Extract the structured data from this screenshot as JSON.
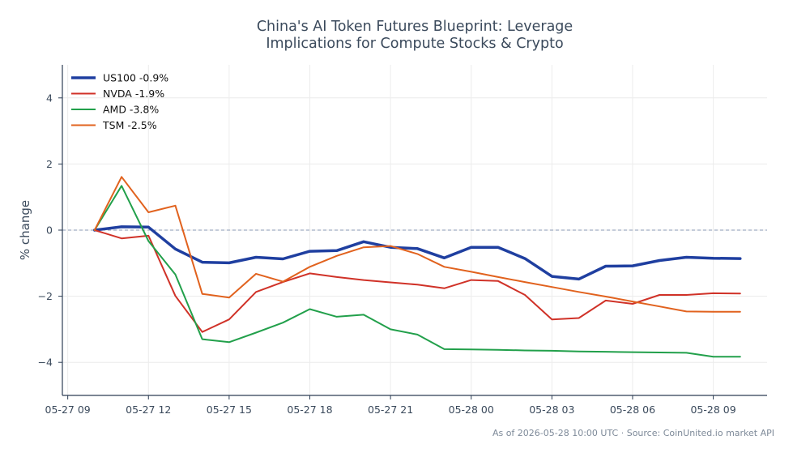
{
  "chart_data": {
    "type": "line",
    "title_lines": [
      "China's AI Token Futures Blueprint: Leverage",
      "Implications for Compute Stocks & Crypto"
    ],
    "ylabel": "% change",
    "xlabel": "",
    "footer": "As of 2026-05-28 10:00 UTC · Source: CoinUnited.io market API",
    "ylim": [
      -5,
      5
    ],
    "xlim": [
      -0.2,
      26
    ],
    "grid": true,
    "zero_line": true,
    "legend_position": "top-left",
    "yticks": [
      {
        "v": 4,
        "label": "4"
      },
      {
        "v": 2,
        "label": "2"
      },
      {
        "v": 0,
        "label": "0"
      },
      {
        "v": -2,
        "label": "−2"
      },
      {
        "v": -4,
        "label": "−4"
      }
    ],
    "xticks": [
      {
        "t": 0,
        "label": "05-27 09"
      },
      {
        "t": 3,
        "label": "05-27 12"
      },
      {
        "t": 6,
        "label": "05-27 15"
      },
      {
        "t": 9,
        "label": "05-27 18"
      },
      {
        "t": 12,
        "label": "05-27 21"
      },
      {
        "t": 15,
        "label": "05-28 00"
      },
      {
        "t": 18,
        "label": "05-28 03"
      },
      {
        "t": 21,
        "label": "05-28 06"
      },
      {
        "t": 24,
        "label": "05-28 09"
      }
    ],
    "series": [
      {
        "name": "US100 -0.9%",
        "color": "#1f3fa0",
        "width": 3.5,
        "x": [
          1,
          2,
          3,
          4,
          5,
          6,
          7,
          8,
          9,
          10,
          11,
          12,
          13,
          14,
          15,
          16,
          17,
          18,
          19,
          20,
          21,
          22,
          23,
          24,
          25
        ],
        "y": [
          0,
          0.1,
          0.09,
          -0.57,
          -0.97,
          -0.99,
          -0.82,
          -0.87,
          -0.64,
          -0.62,
          -0.35,
          -0.52,
          -0.56,
          -0.84,
          -0.52,
          -0.52,
          -0.86,
          -1.4,
          -1.48,
          -1.09,
          -1.08,
          -0.92,
          -0.82,
          -0.85,
          -0.86
        ]
      },
      {
        "name": "NVDA -1.9%",
        "color": "#d03228",
        "width": 2,
        "x": [
          1,
          2,
          3,
          4,
          5,
          6,
          7,
          8,
          9,
          10,
          11,
          12,
          13,
          14,
          15,
          16,
          17,
          18,
          19,
          20,
          21,
          22,
          23,
          24,
          25
        ],
        "y": [
          0,
          -0.25,
          -0.17,
          -1.99,
          -3.08,
          -2.7,
          -1.87,
          -1.57,
          -1.31,
          -1.42,
          -1.51,
          -1.58,
          -1.65,
          -1.76,
          -1.51,
          -1.54,
          -1.96,
          -2.7,
          -2.66,
          -2.13,
          -2.23,
          -1.96,
          -1.96,
          -1.91,
          -1.92
        ]
      },
      {
        "name": "AMD -3.8%",
        "color": "#22a04b",
        "width": 2,
        "x": [
          1,
          2,
          3,
          4,
          5,
          6,
          7,
          8,
          9,
          10,
          11,
          12,
          13,
          14,
          15,
          16,
          17,
          18,
          19,
          20,
          21,
          22,
          23,
          24,
          25
        ],
        "y": [
          0,
          1.34,
          -0.33,
          -1.34,
          -3.3,
          -3.39,
          -3.1,
          -2.8,
          -2.39,
          -2.62,
          -2.56,
          -3.0,
          -3.16,
          -3.6,
          -3.61,
          -3.62,
          -3.64,
          -3.65,
          -3.67,
          -3.68,
          -3.69,
          -3.7,
          -3.71,
          -3.83,
          -3.83
        ]
      },
      {
        "name": "TSM -2.5%",
        "color": "#e1621e",
        "width": 2,
        "x": [
          1,
          2,
          3,
          4,
          5,
          6,
          7,
          8,
          9,
          10,
          11,
          12,
          13,
          14,
          15,
          16,
          17,
          18,
          19,
          20,
          21,
          22,
          23,
          24,
          25
        ],
        "y": [
          0,
          1.61,
          0.54,
          0.74,
          -1.93,
          -2.04,
          -1.32,
          -1.56,
          -1.11,
          -0.78,
          -0.52,
          -0.48,
          -0.72,
          -1.11,
          -1.26,
          -1.42,
          -1.57,
          -1.72,
          -1.87,
          -2.01,
          -2.16,
          -2.31,
          -2.46,
          -2.47,
          -2.47
        ]
      }
    ],
    "colors": {
      "axis": "#2d3e55",
      "text": "#3b4a5c",
      "grid": "#ececec",
      "zero": "#8a9ab5",
      "footer": "#7e8a99"
    }
  }
}
